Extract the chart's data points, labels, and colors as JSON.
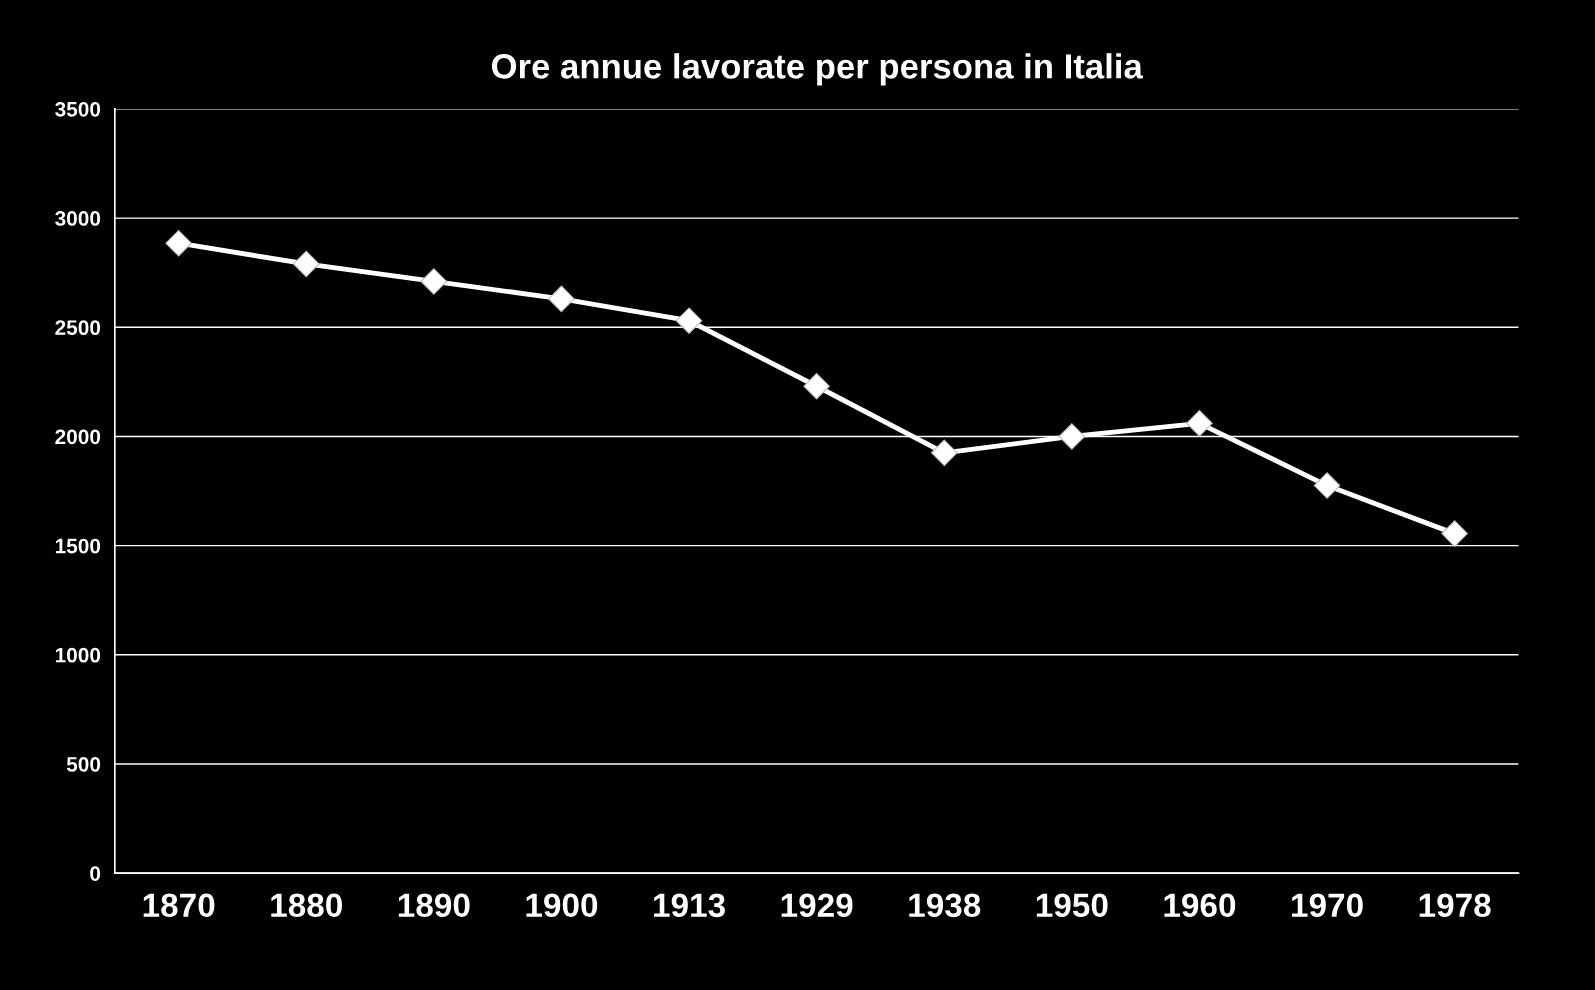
{
  "chart_data": {
    "type": "line",
    "title": "Ore annue lavorate per persona in Italia",
    "categories": [
      "1870",
      "1880",
      "1890",
      "1900",
      "1913",
      "1929",
      "1938",
      "1950",
      "1960",
      "1970",
      "1978"
    ],
    "series": [
      {
        "color": "#ffffff",
        "values": [
          2885,
          2790,
          2710,
          2630,
          2530,
          2230,
          1925,
          2000,
          2060,
          1775,
          1555
        ]
      }
    ],
    "ylim": [
      0,
      3500
    ],
    "yticks": [
      0,
      500,
      1000,
      1500,
      2000,
      2500,
      3000,
      3500
    ],
    "grid": "y",
    "marker": "diamond",
    "line_style": "solid",
    "legend": false
  }
}
